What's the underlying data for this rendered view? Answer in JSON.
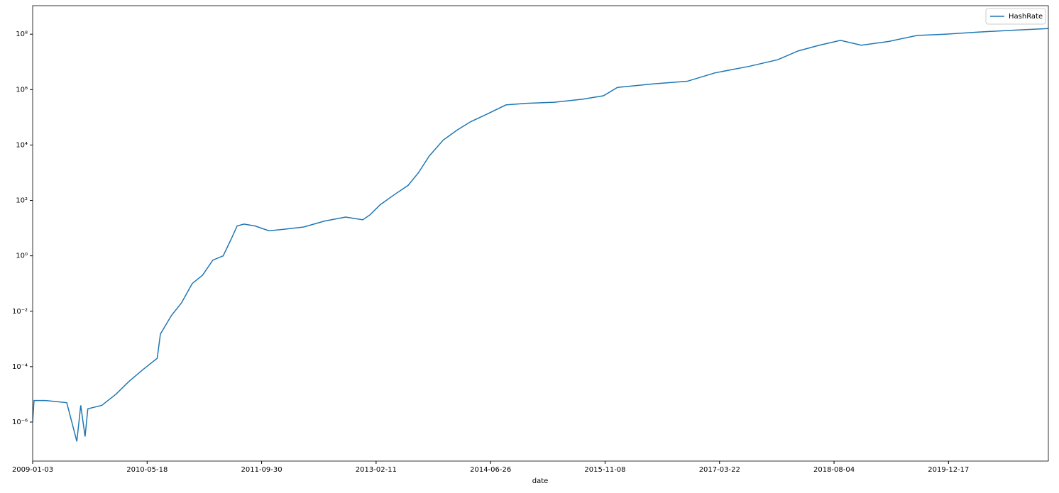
{
  "chart_data": {
    "type": "line",
    "x_label": "date",
    "x": [
      "2009-01-03",
      "2009-01-09",
      "2009-03-01",
      "2009-06-01",
      "2009-07-15",
      "2009-08-01",
      "2009-08-20",
      "2009-09-01",
      "2009-11-01",
      "2010-01-01",
      "2010-03-01",
      "2010-05-01",
      "2010-07-01",
      "2010-07-15",
      "2010-09-01",
      "2010-10-15",
      "2010-12-01",
      "2011-01-15",
      "2011-03-01",
      "2011-04-15",
      "2011-05-20",
      "2011-06-15",
      "2011-07-15",
      "2011-09-01",
      "2011-11-01",
      "2012-01-01",
      "2012-04-01",
      "2012-07-01",
      "2012-10-01",
      "2012-12-15",
      "2013-01-15",
      "2013-03-01",
      "2013-05-01",
      "2013-07-01",
      "2013-08-15",
      "2013-10-01",
      "2013-12-01",
      "2014-02-01",
      "2014-04-01",
      "2014-06-01",
      "2014-09-01",
      "2014-12-01",
      "2015-04-01",
      "2015-08-01",
      "2015-11-01",
      "2016-01-01",
      "2016-06-01",
      "2016-11-01",
      "2017-03-01",
      "2017-08-01",
      "2017-12-01",
      "2018-03-01",
      "2018-06-01",
      "2018-09-01",
      "2018-12-01",
      "2019-04-01",
      "2019-08-01",
      "2019-12-01",
      "2020-05-01",
      "2020-10-01",
      "2021-02-25"
    ],
    "series": [
      {
        "name": "HashRate",
        "color": "#1f77b4",
        "values": [
          1e-06,
          6e-06,
          6e-06,
          5e-06,
          2e-07,
          4e-06,
          3e-07,
          3e-06,
          4e-06,
          1e-05,
          3e-05,
          8e-05,
          0.0002,
          0.0015,
          0.007,
          0.02,
          0.1,
          0.2,
          0.7,
          1,
          4,
          12,
          14,
          12,
          8,
          9,
          11,
          18,
          25,
          20,
          30,
          70,
          160,
          350,
          1000,
          4000,
          15000,
          35000,
          70000,
          120000,
          280000,
          320000,
          350000,
          450000,
          600000,
          1200000,
          1600000,
          2000000,
          4000000,
          7000000,
          12000000,
          25000000,
          40000000,
          60000000,
          40000000,
          55000000,
          90000000,
          100000000,
          120000000,
          140000000,
          160000000
        ]
      }
    ],
    "xlim": [
      "2009-01-03",
      "2021-02-25"
    ],
    "xticks": [
      "2009-01-03",
      "2010-05-18",
      "2011-09-30",
      "2013-02-11",
      "2014-06-26",
      "2015-11-08",
      "2017-03-22",
      "2018-08-04",
      "2019-12-17"
    ],
    "ylim": [
      3.9e-08,
      1070000000.0
    ],
    "yscale": "log",
    "yticks": [
      {
        "value": 1e-06,
        "label": "10⁻⁶"
      },
      {
        "value": 0.0001,
        "label": "10⁻⁴"
      },
      {
        "value": 0.01,
        "label": "10⁻²"
      },
      {
        "value": 1,
        "label": "10⁰"
      },
      {
        "value": 100,
        "label": "10²"
      },
      {
        "value": 10000,
        "label": "10⁴"
      },
      {
        "value": 1000000,
        "label": "10⁶"
      },
      {
        "value": 100000000,
        "label": "10⁸"
      }
    ],
    "legend": "upper right"
  }
}
